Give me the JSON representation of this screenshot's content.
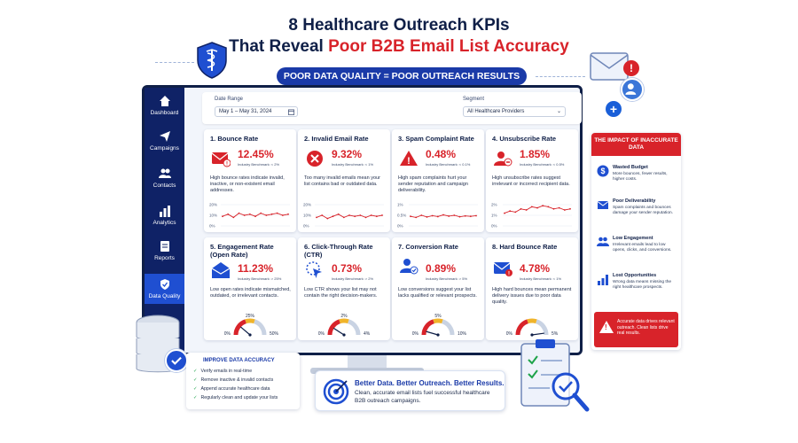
{
  "header": {
    "title_line1": "8 Healthcare Outreach KPIs",
    "title_line2_plain": "That Reveal ",
    "title_line2_accent": "Poor B2B Email List Accuracy",
    "banner": "POOR DATA QUALITY = POOR OUTREACH RESULTS"
  },
  "colors": {
    "navy": "#0f2266",
    "accent_red": "#d8232a",
    "blue": "#1f4fd1",
    "green": "#1ea34a"
  },
  "sidebar": {
    "items": [
      {
        "label": "Dashboard",
        "icon": "home-icon"
      },
      {
        "label": "Campaigns",
        "icon": "paper-plane-icon"
      },
      {
        "label": "Contacts",
        "icon": "users-icon"
      },
      {
        "label": "Analytics",
        "icon": "bar-chart-icon"
      },
      {
        "label": "Reports",
        "icon": "document-icon"
      },
      {
        "label": "Data Quality",
        "icon": "shield-check-icon",
        "active": true
      }
    ]
  },
  "filters": {
    "date_label": "Date Range",
    "date_value": "May 1 – May 31, 2024",
    "segment_label": "Segment",
    "segment_value": "All Healthcare Providers"
  },
  "kpis": [
    {
      "title": "1. Bounce Rate",
      "value": "12.45%",
      "benchmark": "Industry Benchmark: < 2%",
      "desc": "High bounce rates indicate invalid, inactive, or non-existent email addresses.",
      "icon": "envelope-alert-icon",
      "chart": {
        "type": "line",
        "ticks": [
          "20%",
          "10%",
          "0%"
        ],
        "points": [
          9,
          11,
          8,
          12,
          10,
          11,
          9,
          12,
          10,
          11,
          12,
          10,
          11
        ]
      }
    },
    {
      "title": "2. Invalid Email Rate",
      "value": "9.32%",
      "benchmark": "Industry Benchmark: < 1%",
      "desc": "Too many invalid emails mean your list contains bad or outdated data.",
      "icon": "x-circle-icon",
      "chart": {
        "type": "line",
        "ticks": [
          "20%",
          "10%",
          "0%"
        ],
        "points": [
          8,
          10,
          7,
          9,
          11,
          8,
          10,
          9,
          10,
          8,
          10,
          9,
          10
        ]
      }
    },
    {
      "title": "3. Spam Complaint Rate",
      "value": "0.48%",
      "benchmark": "Industry Benchmark: < 0.1%",
      "desc": "High spam complaints hurt your sender reputation and campaign deliverability.",
      "icon": "warning-icon",
      "chart": {
        "type": "line",
        "ticks": [
          "1%",
          "0.5%",
          "0%"
        ],
        "points": [
          0.45,
          0.4,
          0.5,
          0.42,
          0.48,
          0.44,
          0.52,
          0.46,
          0.5,
          0.43,
          0.47,
          0.45,
          0.48
        ]
      }
    },
    {
      "title": "4. Unsubscribe Rate",
      "value": "1.85%",
      "benchmark": "Industry Benchmark: < 0.5%",
      "desc": "High unsubscribe rates suggest irrelevant or incorrect recipient data.",
      "icon": "user-remove-icon",
      "chart": {
        "type": "line",
        "ticks": [
          "2%",
          "1%",
          "0%"
        ],
        "points": [
          1.2,
          1.4,
          1.3,
          1.6,
          1.5,
          1.8,
          1.7,
          1.9,
          1.8,
          1.6,
          1.7,
          1.5,
          1.6
        ]
      }
    },
    {
      "title": "5. Engagement Rate (Open Rate)",
      "value": "11.23%",
      "benchmark": "Industry Benchmark: > 25%",
      "desc": "Low open rates indicate mismatched, outdated, or irrelevant contacts.",
      "icon": "open-envelope-icon",
      "gauge": {
        "min": "0%",
        "mid": "25%",
        "max": "50%",
        "min_value": 0,
        "max_value": 50,
        "value": 11.23
      }
    },
    {
      "title": "6. Click-Through Rate (CTR)",
      "value": "0.73%",
      "benchmark": "Industry Benchmark: > 2%",
      "desc": "Low CTR shows your list may not contain the right decision-makers.",
      "icon": "cursor-click-icon",
      "gauge": {
        "min": "0%",
        "mid": "2%",
        "max": "4%",
        "min_value": 0,
        "max_value": 4,
        "value": 0.73
      }
    },
    {
      "title": "7. Conversion Rate",
      "value": "0.89%",
      "benchmark": "Industry Benchmark: > 5%",
      "desc": "Low conversions suggest your list lacks qualified or relevant prospects.",
      "icon": "user-check-icon",
      "gauge": {
        "min": "0%",
        "mid": "5%",
        "max": "10%",
        "min_value": 0,
        "max_value": 10,
        "value": 0.89
      }
    },
    {
      "title": "8. Hard Bounce Rate",
      "value": "4.78%",
      "benchmark": "Industry Benchmark: < 1%",
      "desc": "High hard bounces mean permanent delivery issues due to poor data quality.",
      "icon": "envelope-alert-icon",
      "gauge": {
        "min": "0%",
        "mid": "",
        "max": "5%",
        "min_value": 0,
        "max_value": 5,
        "value": 4.78
      }
    }
  ],
  "impact": {
    "heading": "THE IMPACT OF INACCURATE DATA",
    "items": [
      {
        "title": "Wasted Budget",
        "desc": "More bounces, fewer results, higher costs.",
        "icon": "dollar-icon"
      },
      {
        "title": "Poor Deliverability",
        "desc": "Spam complaints and bounces damage your sender reputation.",
        "icon": "envelope-icon"
      },
      {
        "title": "Low Engagement",
        "desc": "Irrelevant emails lead to low opens, clicks, and conversions.",
        "icon": "people-icon"
      },
      {
        "title": "Lost Opportunities",
        "desc": "Wrong data means missing the right healthcare prospects.",
        "icon": "trend-bars-icon"
      }
    ],
    "footer": "Accurate data drives relevant outreach. Clean lists drive real results."
  },
  "improve": {
    "title": "IMPROVE DATA ACCURACY",
    "items": [
      "Verify emails in real-time",
      "Remove inactive & invalid contacts",
      "Append accurate healthcare data",
      "Regularly clean and update your lists"
    ]
  },
  "better": {
    "title": "Better Data. Better Outreach. Better Results.",
    "desc": "Clean, accurate email lists fuel successful healthcare B2B outreach campaigns."
  }
}
